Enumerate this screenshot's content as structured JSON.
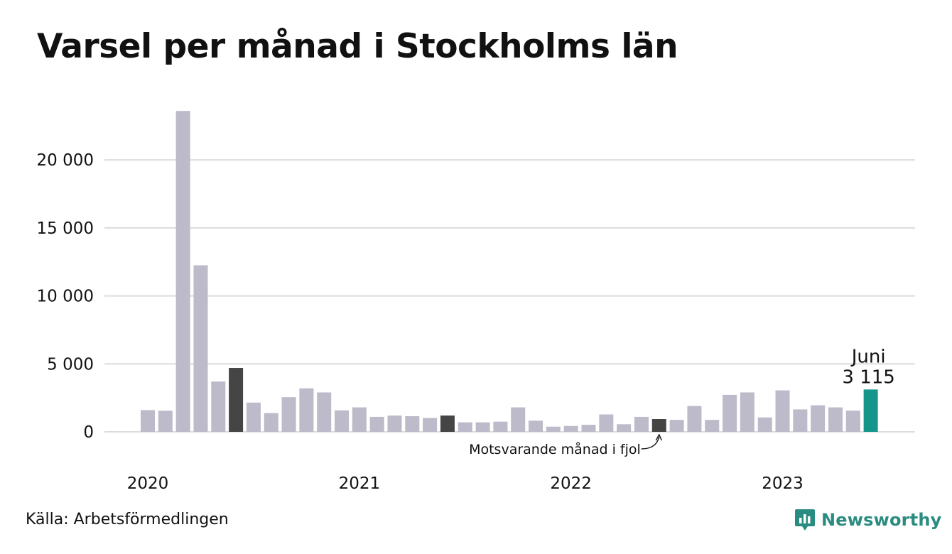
{
  "title": "Varsel per månad i Stockholms län",
  "source": "Källa: Arbetsförmedlingen",
  "brand": {
    "name": "Newsworthy",
    "icon": "newsworthy-logo-icon",
    "color": "#2a8c80"
  },
  "colors": {
    "default": "#bdbac9",
    "same_month": "#454545",
    "current": "#16958a",
    "grid": "#dcdcdc"
  },
  "chart_data": {
    "type": "bar",
    "title": "Varsel per månad i Stockholms län",
    "xlabel": "",
    "ylabel": "",
    "ylim": [
      0,
      24500
    ],
    "yticks": [
      0,
      5000,
      10000,
      15000,
      20000
    ],
    "ytick_labels": [
      "0",
      "5 000",
      "10 000",
      "15 000",
      "20 000"
    ],
    "xtick_labels": [
      {
        "label": "2020",
        "category": "2020-01"
      },
      {
        "label": "2021",
        "category": "2021-01"
      },
      {
        "label": "2022",
        "category": "2022-01"
      },
      {
        "label": "2023",
        "category": "2023-01"
      }
    ],
    "grid": "horizontal",
    "categories": [
      "2020-01",
      "2020-02",
      "2020-03",
      "2020-04",
      "2020-05",
      "2020-06",
      "2020-07",
      "2020-08",
      "2020-09",
      "2020-10",
      "2020-11",
      "2020-12",
      "2021-01",
      "2021-02",
      "2021-03",
      "2021-04",
      "2021-05",
      "2021-06",
      "2021-07",
      "2021-08",
      "2021-09",
      "2021-10",
      "2021-11",
      "2021-12",
      "2022-01",
      "2022-02",
      "2022-03",
      "2022-04",
      "2022-05",
      "2022-06",
      "2022-07",
      "2022-08",
      "2022-09",
      "2022-10",
      "2022-11",
      "2022-12",
      "2023-01",
      "2023-02",
      "2023-03",
      "2023-04",
      "2023-05",
      "2023-06"
    ],
    "values": [
      1600,
      1550,
      23600,
      12250,
      3700,
      4700,
      2150,
      1380,
      2550,
      3200,
      2900,
      1580,
      1800,
      1100,
      1200,
      1150,
      1020,
      1200,
      700,
      700,
      750,
      1800,
      820,
      380,
      430,
      520,
      1280,
      560,
      1100,
      940,
      880,
      1900,
      880,
      2720,
      2900,
      1060,
      3050,
      1650,
      1950,
      1800,
      1560,
      3115
    ],
    "highlights": [
      {
        "category": "2020-06",
        "role": "same_month"
      },
      {
        "category": "2021-06",
        "role": "same_month"
      },
      {
        "category": "2022-06",
        "role": "same_month"
      },
      {
        "category": "2023-06",
        "role": "current"
      }
    ],
    "annotations": [
      {
        "category": "2023-06",
        "lines": [
          "Juni",
          "3 115"
        ]
      },
      {
        "category": "2022-06",
        "text": "Motsvarande månad i fjol"
      }
    ]
  }
}
